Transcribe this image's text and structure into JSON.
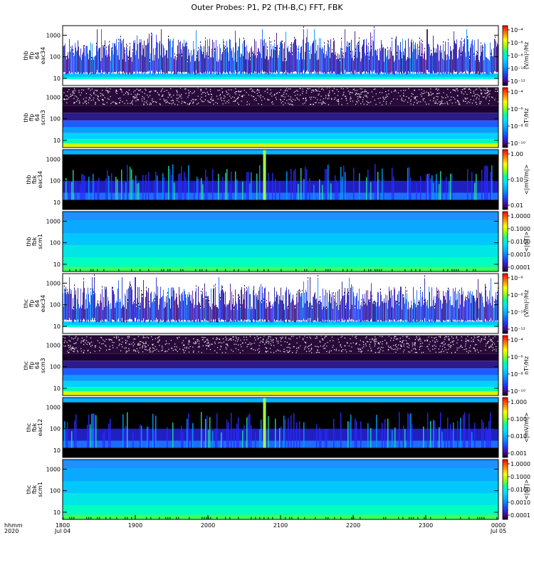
{
  "title": "Outer Probes: P1, P2 (TH-B,C) FFT, FBK",
  "x_axis": {
    "row_labels": [
      "hhmm",
      "2020"
    ],
    "ticks": [
      {
        "label": "1800",
        "sub": "Jul 04"
      },
      {
        "label": "1900",
        "sub": ""
      },
      {
        "label": "2000",
        "sub": ""
      },
      {
        "label": "2100",
        "sub": ""
      },
      {
        "label": "2200",
        "sub": ""
      },
      {
        "label": "2300",
        "sub": ""
      },
      {
        "label": "0000",
        "sub": "Jul 05"
      }
    ]
  },
  "panels": [
    {
      "id": "thb-ffp-eac34",
      "ylabel": [
        "thb",
        "ffp",
        "64",
        "eac34"
      ],
      "yticks": [
        "10",
        "100",
        "1000"
      ],
      "cbar_label": "(V/m)²/Hz",
      "cbar_ticks": [
        "10⁻¹²",
        "10⁻¹⁰",
        "10⁻⁸",
        "10⁻⁶",
        "10⁻⁴"
      ],
      "style": "wave"
    },
    {
      "id": "thb-ffp-scm3",
      "ylabel": [
        "thb",
        "ffp",
        "64",
        "scm3"
      ],
      "yticks": [
        "10",
        "100",
        "1000"
      ],
      "cbar_label": "nT²/Hz",
      "cbar_ticks": [
        "10⁻¹⁰",
        "10⁻⁸",
        "10⁻⁶",
        "10⁻⁴"
      ],
      "style": "scm"
    },
    {
      "id": "thb-fbk-eac34",
      "ylabel": [
        "thb",
        "fbk",
        "eac34"
      ],
      "yticks": [
        "10",
        "100",
        "1000"
      ],
      "cbar_label": "<|mV/m|>",
      "cbar_ticks": [
        "0.01",
        "0.10",
        "1.00"
      ],
      "style": "fbk"
    },
    {
      "id": "thb-fbk-scm1",
      "ylabel": [
        "thb",
        "fbk",
        "scm1"
      ],
      "yticks": [
        "10",
        "100",
        "1000"
      ],
      "cbar_label": "<|nT|>",
      "cbar_ticks": [
        "0.0001",
        "0.0010",
        "0.0100",
        "0.1000",
        "1.0000"
      ],
      "style": "fbkscm"
    },
    {
      "id": "thc-ffp-eac34",
      "ylabel": [
        "thc",
        "ffp",
        "64",
        "eac34"
      ],
      "yticks": [
        "10",
        "100",
        "1000"
      ],
      "cbar_label": "(V/m)²/Hz",
      "cbar_ticks": [
        "10⁻¹²",
        "10⁻¹⁰",
        "10⁻⁸",
        "10⁻⁶"
      ],
      "style": "wave"
    },
    {
      "id": "thc-ffp-scm3",
      "ylabel": [
        "thc",
        "ffp",
        "64",
        "scm3"
      ],
      "yticks": [
        "10",
        "100",
        "1000"
      ],
      "cbar_label": "nT²/Hz",
      "cbar_ticks": [
        "10⁻¹⁰",
        "10⁻⁸",
        "10⁻⁶",
        "10⁻⁴"
      ],
      "style": "scm"
    },
    {
      "id": "thc-fbk-eac12",
      "ylabel": [
        "thc",
        "fbk",
        "eac12"
      ],
      "yticks": [
        "10",
        "100",
        "1000"
      ],
      "cbar_label": "<|mV/m|>",
      "cbar_ticks": [
        "0.001",
        "0.010",
        "0.100",
        "1.000"
      ],
      "style": "fbk"
    },
    {
      "id": "thc-fbk-scm1",
      "ylabel": [
        "thc",
        "fbk",
        "scm1"
      ],
      "yticks": [
        "10",
        "100",
        "1000"
      ],
      "cbar_label": "<|nT|>",
      "cbar_ticks": [
        "0.0001",
        "0.0010",
        "0.0100",
        "0.1000",
        "1.0000"
      ],
      "style": "fbkscm"
    }
  ],
  "chart_data": {
    "type": "heatmap",
    "title": "Outer Probes: P1, P2 (TH-B,C) FFT, FBK",
    "time_range": [
      "2020-07-04 18:00",
      "2020-07-05 00:00"
    ],
    "x_ticks": [
      "1800",
      "1900",
      "2000",
      "2100",
      "2200",
      "2300",
      "0000"
    ],
    "y_scale": "log",
    "y_ticks": [
      10,
      100,
      1000
    ],
    "colorbar": "rainbow",
    "panels": [
      "thb ffp 64 eac34",
      "thb ffp 64 scm3",
      "thb fbk eac34",
      "thb fbk scm1",
      "thc ffp 64 eac34",
      "thc ffp 64 scm3",
      "thc fbk eac12",
      "thc fbk scm1"
    ]
  }
}
